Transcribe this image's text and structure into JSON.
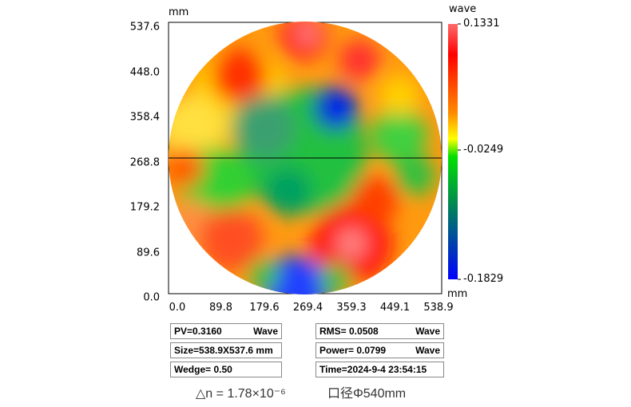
{
  "chart_data": {
    "type": "heatmap",
    "x_unit": "mm",
    "y_unit": "mm",
    "colorbar_unit": "wave",
    "x_ticks": [
      "0.0",
      "89.8",
      "179.6",
      "269.4",
      "359.3",
      "449.1",
      "538.9"
    ],
    "y_ticks": [
      "537.6",
      "448.0",
      "358.4",
      "268.8",
      "179.2",
      "89.6",
      "0.0"
    ],
    "xlim": [
      0,
      538.9
    ],
    "ylim": [
      0,
      537.6
    ],
    "colorbar": {
      "max": "0.1331",
      "mid": "-0.0249",
      "min": "-0.1829",
      "colors": [
        "#ff6060",
        "#ff0000",
        "#ff8000",
        "#ffff00",
        "#00e000",
        "#008040",
        "#0000ff"
      ]
    },
    "cross_section_y": "268.8"
  },
  "stats": {
    "pv": "PV=0.3160",
    "pv_unit": "Wave",
    "rms": "RMS=  0.0508",
    "rms_unit": "Wave",
    "size": "Size=538.9X537.6  mm",
    "power": "Power=  0.0799",
    "power_unit": "Wave",
    "wedge": "Wedge=  0.50",
    "time": "Time=2024-9-4 23:54:15"
  },
  "caption": {
    "delta_n": "△n = 1.78×10⁻⁶",
    "aperture": "口径Φ540mm"
  }
}
